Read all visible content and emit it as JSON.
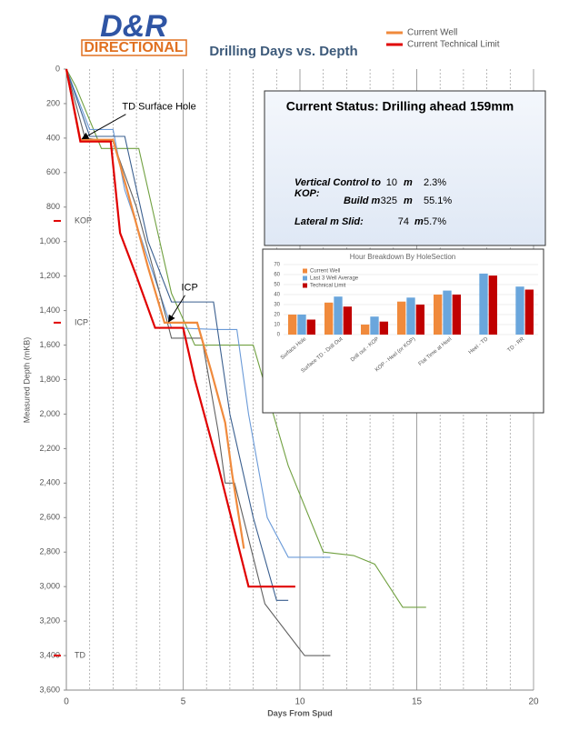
{
  "logo": {
    "line1": "D&R",
    "line2": "DIRECTIONAL"
  },
  "status": {
    "title": "Current Status:  Drilling ahead 159mm",
    "rows": [
      {
        "label": "Vertical Control to KOP:",
        "value": "10",
        "unit": "m",
        "pct": "2.3%"
      },
      {
        "label": "Build m",
        "value": "325",
        "unit": "m",
        "pct": "55.1%"
      },
      {
        "label": "Lateral m Slid:",
        "value": "74",
        "unit": "m",
        "pct": "5.7%"
      }
    ]
  },
  "chart_data": [
    {
      "type": "line",
      "title": "Drilling Days vs. Depth",
      "x_label": "Days From Spud",
      "y_label": "Measured Depth (mKB)",
      "xlim": [
        0,
        20
      ],
      "xticks": [
        0,
        5,
        10,
        15,
        20
      ],
      "xminorticks": [
        1,
        2,
        3,
        4,
        6,
        7,
        8,
        9,
        11,
        12,
        13,
        14,
        16,
        17,
        18,
        19
      ],
      "ylim": [
        0,
        3600
      ],
      "y_inverted": true,
      "yticks": [
        0,
        200,
        400,
        600,
        800,
        {
          "value": 1000,
          "label": "1,000"
        },
        {
          "value": 1200,
          "label": "1,200"
        },
        {
          "value": 1400,
          "label": "1,400"
        },
        {
          "value": 1600,
          "label": "1,600"
        },
        {
          "value": 1800,
          "label": "1,800"
        },
        {
          "value": 2000,
          "label": "2,000"
        },
        {
          "value": 2200,
          "label": "2,200"
        },
        {
          "value": 2400,
          "label": "2,400"
        },
        {
          "value": 2600,
          "label": "2,600"
        },
        {
          "value": 2800,
          "label": "2,800"
        },
        {
          "value": 3000,
          "label": "3,000"
        },
        {
          "value": 3200,
          "label": "3,200"
        },
        {
          "value": 3400,
          "label": "3,400"
        },
        {
          "value": 3600,
          "label": "3,600"
        }
      ],
      "grid": true,
      "markers": [
        {
          "label": "KOP",
          "value": 880,
          "color": "#e00000"
        },
        {
          "label": "ICP",
          "value": 1470,
          "color": "#e00000"
        },
        {
          "label": "TD",
          "value": 3400,
          "color": "#e00000"
        }
      ],
      "annotations": [
        {
          "text": "TD Surface Hole",
          "x": 0.6,
          "y": 420
        },
        {
          "text": "ICP",
          "x": 4.3,
          "y": 1480
        }
      ],
      "series": [
        {
          "color": "#70a040",
          "x": [
            0,
            0.4,
            1.5,
            3.1,
            4.5,
            5.5,
            8.0,
            9.5,
            11.0,
            12.3,
            13.2,
            14.4,
            15.4
          ],
          "values": [
            0,
            100,
            460,
            460,
            1300,
            1600,
            1600,
            2300,
            2800,
            2820,
            2870,
            3120,
            3120
          ]
        },
        {
          "color": "#6a9ad8",
          "x": [
            0,
            1.0,
            2.0,
            2.5,
            3.5,
            4.5,
            6.5,
            7.3,
            7.8,
            8.6,
            9.5,
            11.3
          ],
          "values": [
            0,
            350,
            350,
            700,
            1100,
            1500,
            1510,
            1510,
            2000,
            2600,
            2830,
            2830
          ]
        },
        {
          "color": "#606060",
          "x": [
            0,
            0.8,
            2.0,
            3.0,
            4.0,
            4.5,
            5.8,
            6.5,
            6.8,
            7.2,
            8.5,
            10.2,
            11.3
          ],
          "values": [
            0,
            400,
            420,
            800,
            1300,
            1560,
            1560,
            2100,
            2400,
            2400,
            3100,
            3400,
            3400
          ]
        },
        {
          "color": "#3a5f8f",
          "x": [
            0,
            1.0,
            2.5,
            3.5,
            4.5,
            6.3,
            7.0,
            8.0,
            9.0,
            9.5
          ],
          "values": [
            0,
            390,
            390,
            1000,
            1350,
            1350,
            2000,
            2600,
            3080,
            3080
          ]
        },
        {
          "name": "Current Well",
          "color": "#f08a3c",
          "x": [
            0,
            0.6,
            2.0,
            2.6,
            3.5,
            4.2,
            5.6,
            6.2,
            6.8,
            7.1,
            7.6
          ],
          "values": [
            0,
            410,
            410,
            700,
            1150,
            1470,
            1470,
            1750,
            2050,
            2350,
            2780
          ]
        },
        {
          "name": "Current Technical Limit",
          "color": "#e00000",
          "x": [
            0,
            0.6,
            1.9,
            2.3,
            3.0,
            3.8,
            5.0,
            5.5,
            6.5,
            7.8,
            9.8
          ],
          "values": [
            0,
            420,
            420,
            950,
            1200,
            1500,
            1500,
            1800,
            2300,
            3000,
            3000
          ]
        }
      ]
    },
    {
      "type": "bar",
      "title": "Hour Breakdown By HoleSection",
      "categories": [
        "Surface Hole",
        "Surface TD - Drill Out",
        "Drill out - KOP",
        "KOP - Heel (or KOP)",
        "Flat Time at Heel",
        "Heel - TD",
        "TD - RR"
      ],
      "ylim": [
        0,
        70
      ],
      "yticks": [
        0,
        10,
        20,
        30,
        40,
        50,
        60,
        70
      ],
      "grid": true,
      "series": [
        {
          "name": "Current Well",
          "color": "#f08a3c",
          "values": [
            20,
            32,
            10,
            33,
            40,
            null,
            null
          ]
        },
        {
          "name": "Last 3 Well Average",
          "color": "#6aa6dc",
          "values": [
            20,
            38,
            18,
            37,
            44,
            61,
            48
          ]
        },
        {
          "name": "Technical Limit",
          "color": "#c00000",
          "values": [
            15,
            28,
            13,
            30,
            40,
            59,
            45
          ]
        }
      ]
    }
  ]
}
